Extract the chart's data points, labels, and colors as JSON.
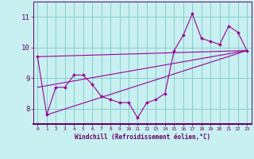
{
  "xlabel": "Windchill (Refroidissement éolien,°C)",
  "bg_color": "#c8f0f0",
  "line_color": "#990099",
  "grid_color": "#88cccc",
  "axis_color": "#660066",
  "hours": [
    0,
    1,
    2,
    3,
    4,
    5,
    6,
    7,
    8,
    9,
    10,
    11,
    12,
    13,
    14,
    15,
    16,
    17,
    18,
    19,
    20,
    21,
    22,
    23
  ],
  "windchill": [
    9.7,
    7.8,
    8.7,
    8.7,
    9.1,
    9.1,
    8.8,
    8.4,
    8.3,
    8.2,
    8.2,
    7.7,
    8.2,
    8.3,
    8.5,
    9.9,
    10.4,
    11.1,
    10.3,
    10.2,
    10.1,
    10.7,
    10.5,
    9.9
  ],
  "trend1_x": [
    1,
    23
  ],
  "trend1_y": [
    7.8,
    9.9
  ],
  "trend2_x": [
    0,
    23
  ],
  "trend2_y": [
    8.7,
    9.9
  ],
  "trend3_x": [
    0,
    23
  ],
  "trend3_y": [
    9.7,
    9.9
  ],
  "ylim": [
    7.5,
    11.5
  ],
  "xlim": [
    -0.5,
    23.5
  ],
  "yticks": [
    8,
    9,
    10,
    11
  ],
  "xticks": [
    0,
    1,
    2,
    3,
    4,
    5,
    6,
    7,
    8,
    9,
    10,
    11,
    12,
    13,
    14,
    15,
    16,
    17,
    18,
    19,
    20,
    21,
    22,
    23
  ]
}
